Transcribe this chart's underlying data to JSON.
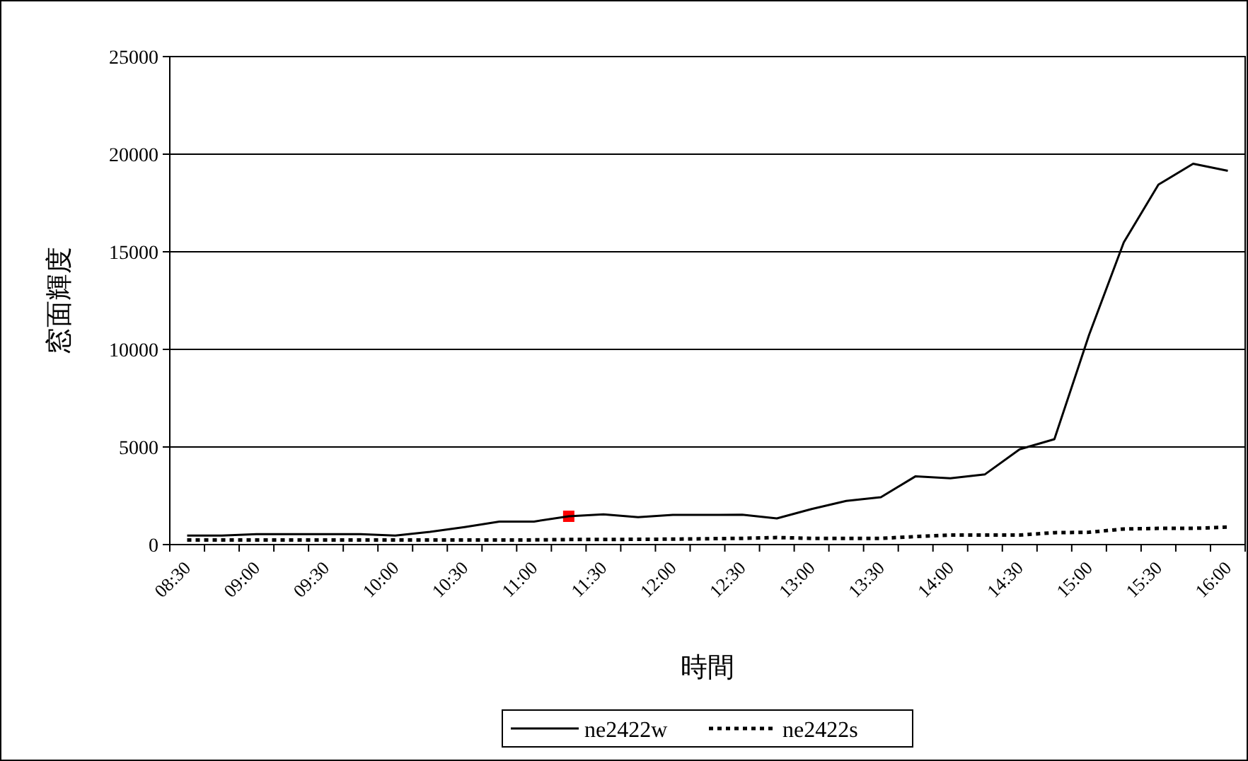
{
  "chart_data": {
    "type": "line",
    "xlabel": "時間",
    "ylabel": "窓面輝度",
    "categories": [
      "08:30",
      null,
      "09:00",
      null,
      "09:30",
      null,
      "10:00",
      null,
      "10:30",
      null,
      "11:00",
      null,
      "11:30",
      null,
      "12:00",
      null,
      "12:30",
      null,
      "13:00",
      null,
      "13:30",
      null,
      "14:00",
      null,
      "14:30",
      null,
      "15:00",
      null,
      "15:30",
      null,
      "16:00"
    ],
    "series": [
      {
        "type": "scatter",
        "marker": "square",
        "color": "#ff0000",
        "values": [
          null,
          null,
          null,
          null,
          null,
          null,
          null,
          null,
          null,
          null,
          null,
          1450,
          null,
          null,
          null,
          null,
          null,
          null,
          null,
          null,
          null,
          null,
          null,
          null,
          null,
          null,
          null,
          null,
          null,
          null,
          null
        ]
      },
      {
        "name": "ne2422w",
        "color": "#000000",
        "line_style": "solid",
        "values": [
          460,
          460,
          530,
          530,
          530,
          530,
          460,
          650,
          900,
          1180,
          1180,
          1450,
          1550,
          1400,
          1520,
          1520,
          1530,
          1340,
          1820,
          2240,
          2430,
          3500,
          3400,
          3600,
          4880,
          5400,
          10740,
          15480,
          18440,
          19510,
          19150
        ]
      },
      {
        "name": "ne2422s",
        "color": "#000000",
        "line_style": "dotted",
        "values": [
          240,
          240,
          240,
          240,
          240,
          240,
          240,
          240,
          240,
          240,
          240,
          260,
          260,
          270,
          280,
          300,
          320,
          360,
          320,
          320,
          320,
          410,
          490,
          490,
          490,
          610,
          630,
          800,
          830,
          830,
          900
        ]
      }
    ],
    "ylim": [
      0,
      25000
    ],
    "yticks": [
      0,
      5000,
      10000,
      15000,
      20000,
      25000
    ],
    "grid": "y",
    "legend": "bottom"
  }
}
